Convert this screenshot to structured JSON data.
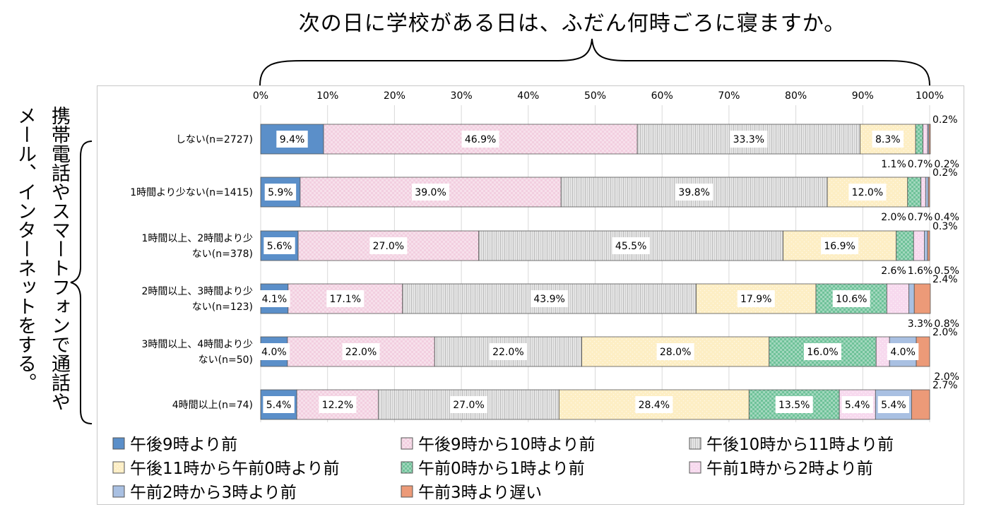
{
  "title": "次の日に学校がある日は、ふだん何時ごろに寝ますか。",
  "side_label": "携帯電話やスマートフォンで通話やメール、インターネットをする。",
  "side_label_lines": [
    "携帯電話やスマートフォンで通話や",
    "メール、インターネットをする。"
  ],
  "chart_data": {
    "type": "bar",
    "orientation": "horizontal",
    "stacked": true,
    "percent_axis": true,
    "xlim": [
      0,
      100
    ],
    "x_ticks": [
      "0%",
      "10%",
      "20%",
      "30%",
      "40%",
      "50%",
      "60%",
      "70%",
      "80%",
      "90%",
      "100%"
    ],
    "categories": [
      "しない(n=2727)",
      "1時間より少ない(n=1415)",
      "1時間以上、2時間より少ない(n=378)",
      "2時間以上、3時間より少ない(n=123)",
      "3時間以上、4時間より少ない(n=50)",
      "4時間以上(n=74)"
    ],
    "category_lines": [
      [
        "しない(n=2727)"
      ],
      [
        "1時間より少ない(n=1415)"
      ],
      [
        "1時間以上、2時間より少",
        "ない(n=378)"
      ],
      [
        "2時間以上、3時間より少",
        "ない(n=123)"
      ],
      [
        "3時間以上、4時間より少",
        "ない(n=50)"
      ],
      [
        "4時間以上(n=74)"
      ]
    ],
    "series": [
      {
        "name": "午後9時より前",
        "color": "#5b8fc9",
        "pattern": "solid",
        "values": [
          9.4,
          5.9,
          5.6,
          4.1,
          4.0,
          5.4
        ]
      },
      {
        "name": "午後9時から10時より前",
        "color": "#f2cfe0",
        "pattern": "check",
        "values": [
          46.9,
          39.0,
          27.0,
          17.1,
          22.0,
          12.2
        ]
      },
      {
        "name": "午後10時から11時より前",
        "color": "#e4e4e4",
        "pattern": "vline",
        "values": [
          33.3,
          39.8,
          45.5,
          43.9,
          22.0,
          27.0
        ]
      },
      {
        "name": "午後11時から午前0時より前",
        "color": "#fdeec4",
        "pattern": "dots",
        "values": [
          8.3,
          12.0,
          16.9,
          17.9,
          28.0,
          28.4
        ]
      },
      {
        "name": "午前0時から1時より前",
        "color": "#6fc299",
        "pattern": "check",
        "values": [
          1.1,
          2.0,
          2.6,
          10.6,
          16.0,
          13.5
        ]
      },
      {
        "name": "午前1時から2時より前",
        "color": "#f7d9ee",
        "pattern": "dots",
        "values": [
          0.7,
          0.7,
          1.6,
          3.3,
          2.0,
          5.4
        ]
      },
      {
        "name": "午前2時から3時より前",
        "color": "#a9c0e2",
        "pattern": "solid",
        "values": [
          0.2,
          0.4,
          0.5,
          0.8,
          4.0,
          5.4
        ]
      },
      {
        "name": "午前3時より遅い",
        "color": "#ec9a78",
        "pattern": "solid",
        "values": [
          0.2,
          0.2,
          0.3,
          2.4,
          2.0,
          2.7
        ]
      }
    ],
    "data_labels": [
      [
        {
          "s": 0,
          "text": "9.4%"
        },
        {
          "s": 1,
          "text": "46.9%"
        },
        {
          "s": 2,
          "text": "33.3%"
        },
        {
          "s": 3,
          "text": "8.3%"
        },
        {
          "s": 4,
          "text": "1.1%"
        },
        {
          "s": 5,
          "text": "0.7%"
        },
        {
          "s": 6,
          "text": "0.2%"
        },
        {
          "s": 7,
          "text": "0.2%"
        }
      ],
      [
        {
          "s": 0,
          "text": "5.9%"
        },
        {
          "s": 1,
          "text": "39.0%"
        },
        {
          "s": 2,
          "text": "39.8%"
        },
        {
          "s": 3,
          "text": "12.0%"
        },
        {
          "s": 4,
          "text": "2.0%"
        },
        {
          "s": 5,
          "text": "0.7%"
        },
        {
          "s": 6,
          "text": "0.4%"
        },
        {
          "s": 7,
          "text": "0.2%"
        }
      ],
      [
        {
          "s": 0,
          "text": "5.6%"
        },
        {
          "s": 1,
          "text": "27.0%"
        },
        {
          "s": 2,
          "text": "45.5%"
        },
        {
          "s": 3,
          "text": "16.9%"
        },
        {
          "s": 4,
          "text": "2.6%"
        },
        {
          "s": 5,
          "text": "1.6%"
        },
        {
          "s": 6,
          "text": "0.5%"
        },
        {
          "s": 7,
          "text": "0.3%"
        }
      ],
      [
        {
          "s": 0,
          "text": "4.1%"
        },
        {
          "s": 1,
          "text": "17.1%"
        },
        {
          "s": 2,
          "text": "43.9%"
        },
        {
          "s": 3,
          "text": "17.9%"
        },
        {
          "s": 4,
          "text": "10.6%"
        },
        {
          "s": 5,
          "text": "3.3%"
        },
        {
          "s": 6,
          "text": "0.8%"
        },
        {
          "s": 7,
          "text": "2.4%"
        }
      ],
      [
        {
          "s": 0,
          "text": "4.0%"
        },
        {
          "s": 1,
          "text": "22.0%"
        },
        {
          "s": 2,
          "text": "22.0%"
        },
        {
          "s": 3,
          "text": "28.0%"
        },
        {
          "s": 4,
          "text": "16.0%"
        },
        {
          "s": 5,
          "text": "2.0%"
        },
        {
          "s": 6,
          "text": "4.0%"
        },
        {
          "s": 7,
          "text": "2.0%"
        }
      ],
      [
        {
          "s": 0,
          "text": "5.4%"
        },
        {
          "s": 1,
          "text": "12.2%"
        },
        {
          "s": 2,
          "text": "27.0%"
        },
        {
          "s": 3,
          "text": "28.4%"
        },
        {
          "s": 4,
          "text": "13.5%"
        },
        {
          "s": 5,
          "text": "5.4%"
        },
        {
          "s": 6,
          "text": "5.4%"
        },
        {
          "s": 7,
          "text": "2.7%"
        }
      ]
    ],
    "legend_position": "bottom",
    "grid": "vertical"
  }
}
